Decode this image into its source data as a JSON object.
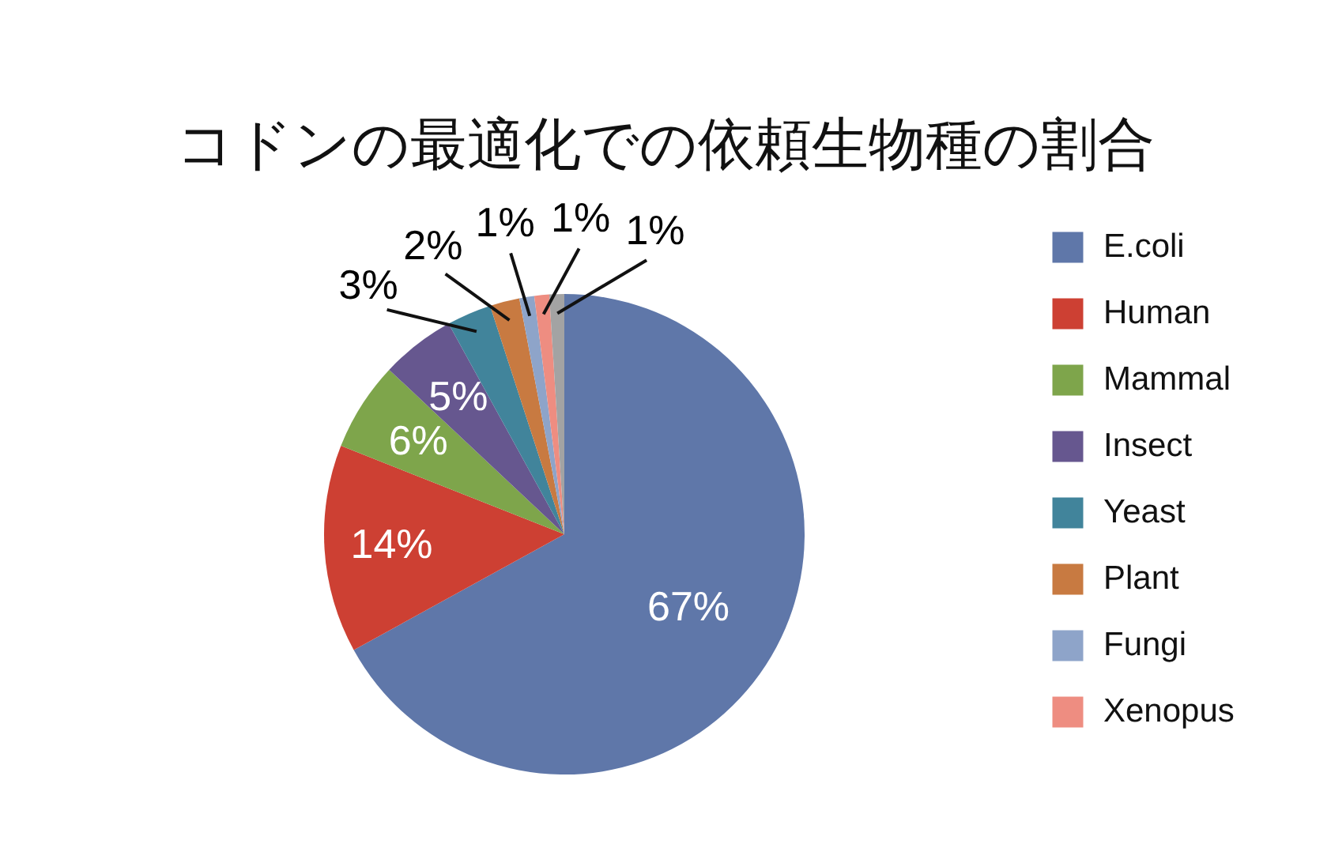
{
  "chart_data": {
    "type": "pie",
    "title": "コドンの最適化での依頼生物種の割合",
    "categories": [
      "E.coli",
      "Human",
      "Mammal",
      "Insect",
      "Yeast",
      "Plant",
      "Fungi",
      "Xenopus",
      null
    ],
    "values": [
      67,
      14,
      6,
      5,
      3,
      2,
      1,
      1,
      1
    ],
    "colors": [
      "#5f77a9",
      "#cd4033",
      "#7ea54b",
      "#66578f",
      "#41849b",
      "#c87a41",
      "#8ea4c9",
      "#ee8d81",
      "#a3a3a3"
    ],
    "value_labels": [
      "67%",
      "14%",
      "6%",
      "5%",
      "3%",
      "2%",
      "1%",
      "1%",
      "1%"
    ],
    "legend": "right"
  }
}
